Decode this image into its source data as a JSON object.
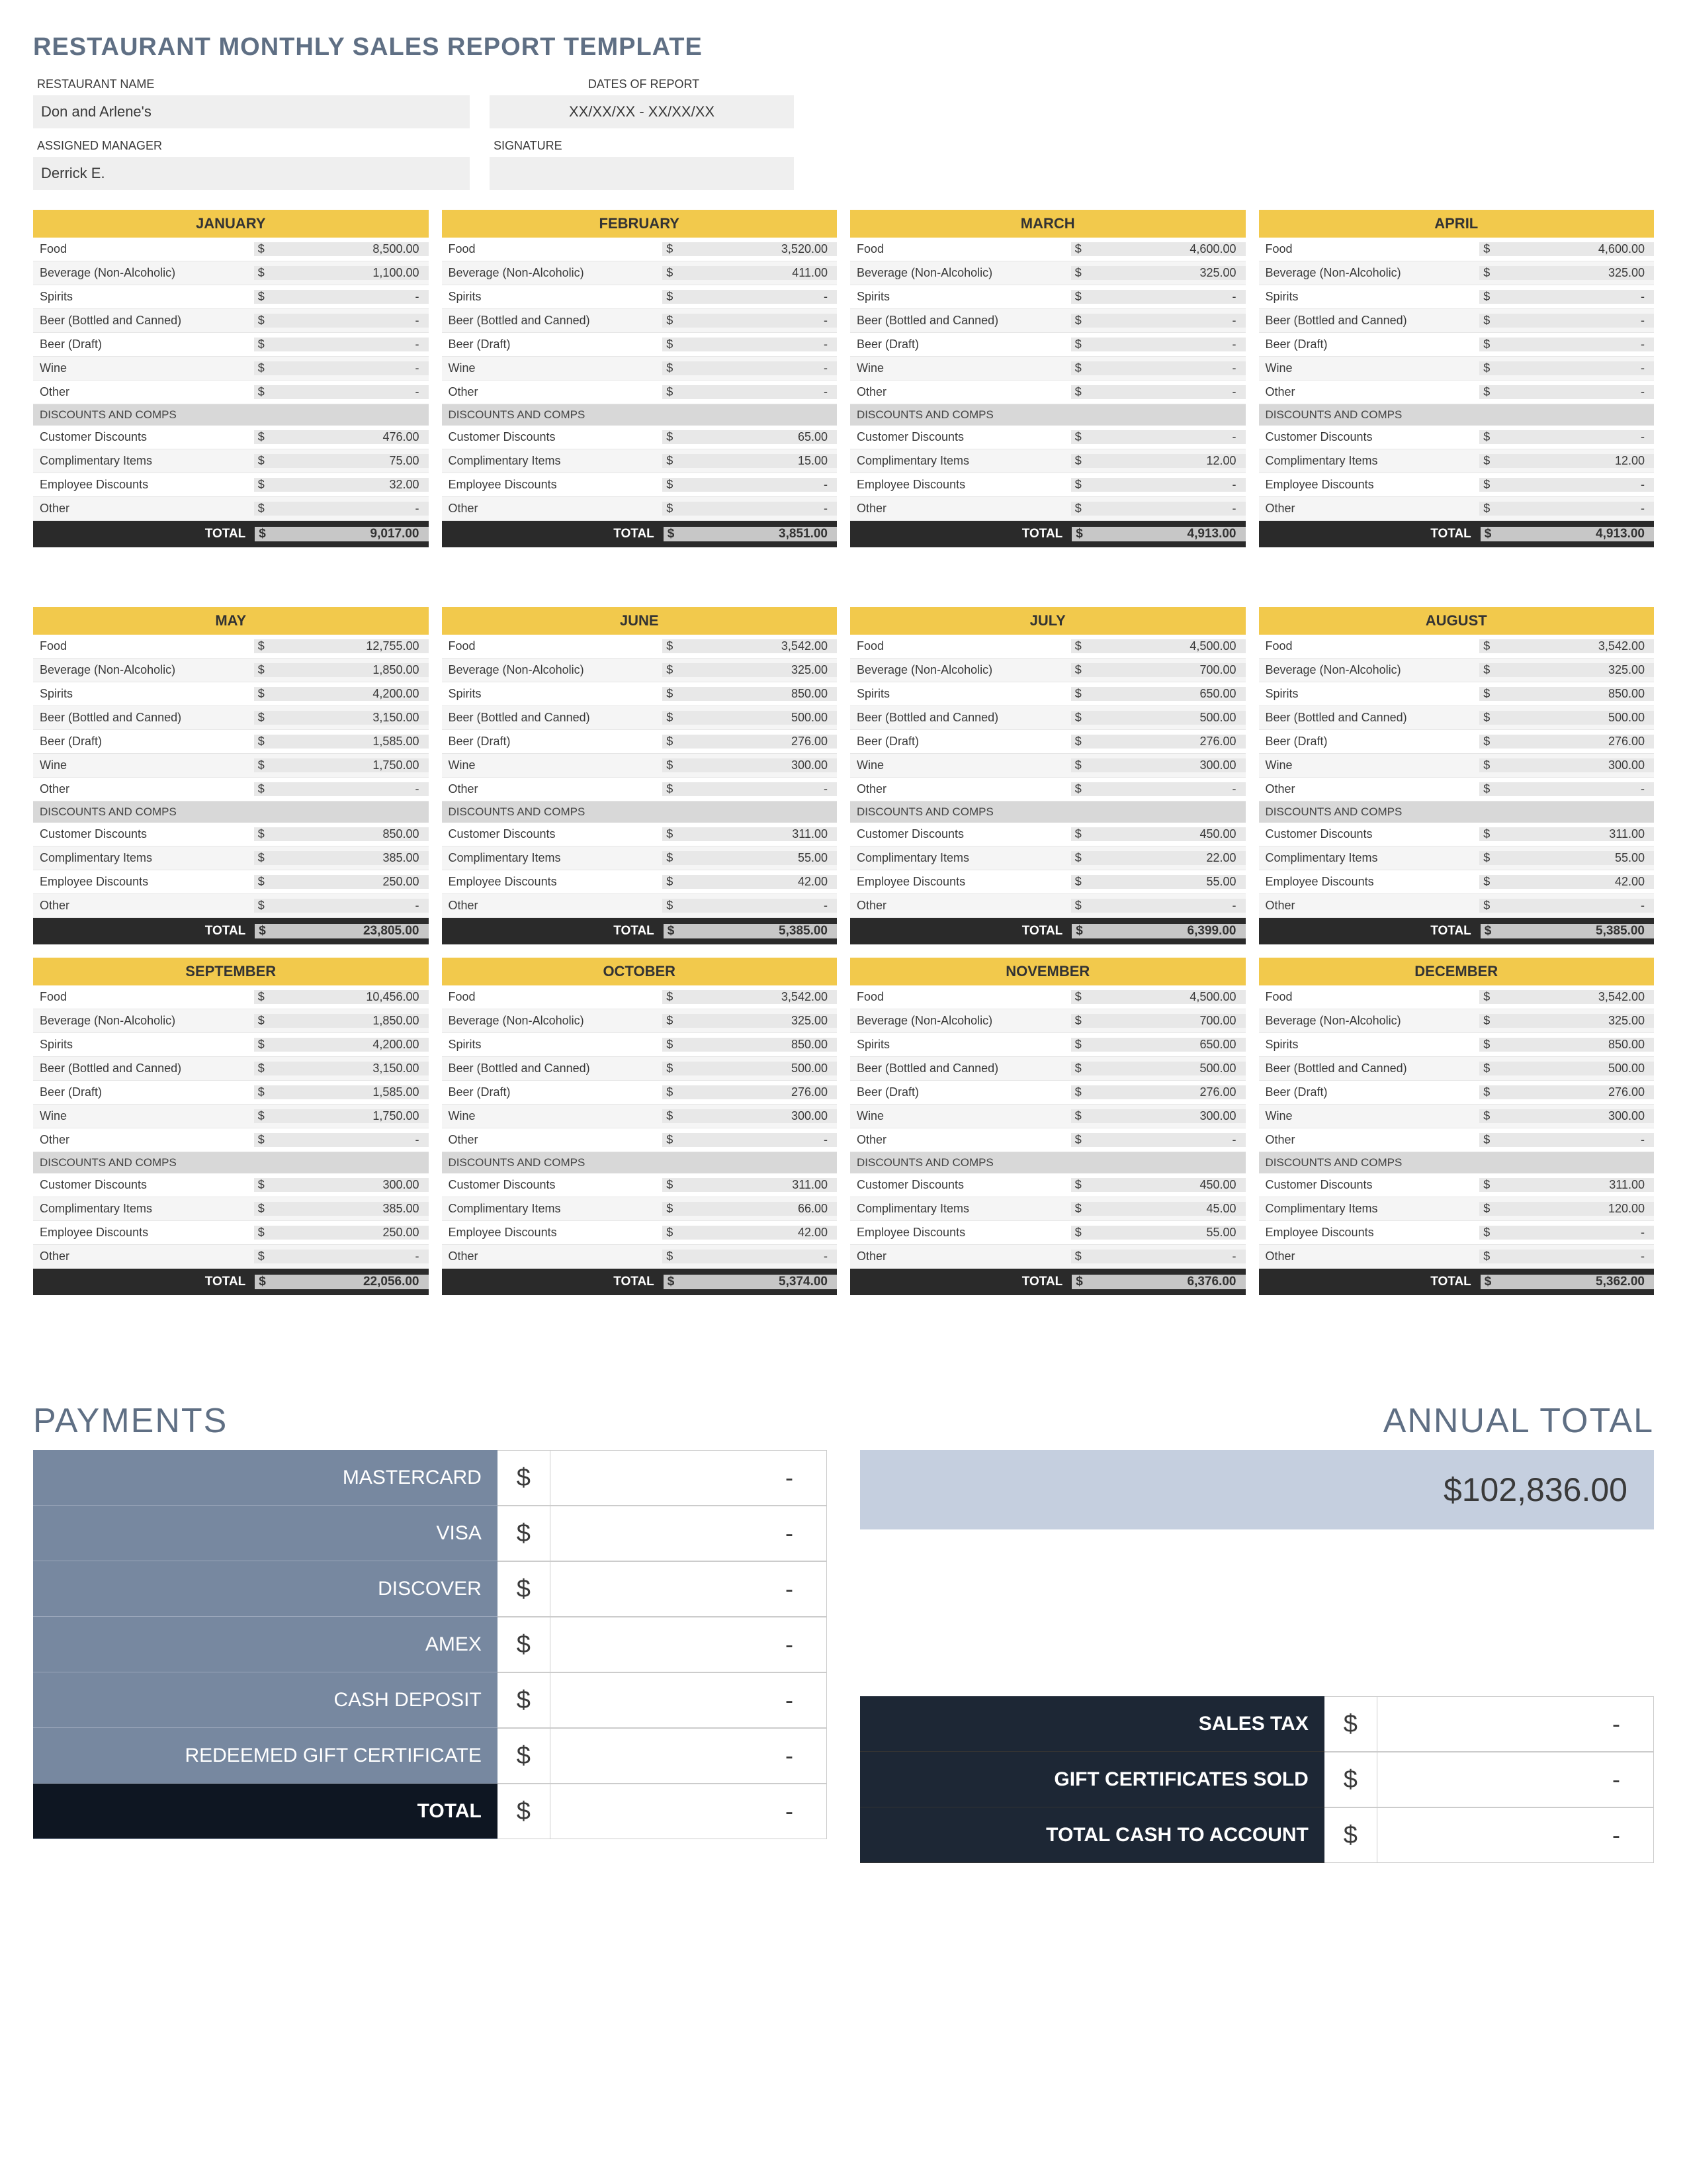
{
  "title": "RESTAURANT MONTHLY SALES REPORT TEMPLATE",
  "header": {
    "restaurant_label": "RESTAURANT NAME",
    "restaurant_value": "Don and Arlene's",
    "dates_label": "DATES OF REPORT",
    "dates_value": "XX/XX/XX - XX/XX/XX",
    "manager_label": "ASSIGNED MANAGER",
    "manager_value": "Derrick E.",
    "signature_label": "SIGNATURE",
    "signature_value": ""
  },
  "currency_symbol": "$",
  "revenue_line_labels": [
    "Food",
    "Beverage (Non-Alcoholic)",
    "Spirits",
    "Beer (Bottled and Canned)",
    "Beer (Draft)",
    "Wine",
    "Other"
  ],
  "discounts_header": "DISCOUNTS AND COMPS",
  "discount_line_labels": [
    "Customer Discounts",
    "Complimentary Items",
    "Employee Discounts",
    "Other"
  ],
  "total_label": "TOTAL",
  "months": [
    {
      "name": "JANUARY",
      "rev": [
        "8,500.00",
        "1,100.00",
        "-",
        "-",
        "-",
        "-",
        "-"
      ],
      "disc": [
        "476.00",
        "75.00",
        "32.00",
        "-"
      ],
      "total": "9,017.00"
    },
    {
      "name": "FEBRUARY",
      "rev": [
        "3,520.00",
        "411.00",
        "-",
        "-",
        "-",
        "-",
        "-"
      ],
      "disc": [
        "65.00",
        "15.00",
        "-",
        "-"
      ],
      "total": "3,851.00"
    },
    {
      "name": "MARCH",
      "rev": [
        "4,600.00",
        "325.00",
        "-",
        "-",
        "-",
        "-",
        "-"
      ],
      "disc": [
        "-",
        "12.00",
        "-",
        "-"
      ],
      "total": "4,913.00"
    },
    {
      "name": "APRIL",
      "rev": [
        "4,600.00",
        "325.00",
        "-",
        "-",
        "-",
        "-",
        "-"
      ],
      "disc": [
        "-",
        "12.00",
        "-",
        "-"
      ],
      "total": "4,913.00"
    },
    {
      "name": "MAY",
      "rev": [
        "12,755.00",
        "1,850.00",
        "4,200.00",
        "3,150.00",
        "1,585.00",
        "1,750.00",
        "-"
      ],
      "disc": [
        "850.00",
        "385.00",
        "250.00",
        "-"
      ],
      "total": "23,805.00"
    },
    {
      "name": "JUNE",
      "rev": [
        "3,542.00",
        "325.00",
        "850.00",
        "500.00",
        "276.00",
        "300.00",
        "-"
      ],
      "disc": [
        "311.00",
        "55.00",
        "42.00",
        "-"
      ],
      "total": "5,385.00"
    },
    {
      "name": "JULY",
      "rev": [
        "4,500.00",
        "700.00",
        "650.00",
        "500.00",
        "276.00",
        "300.00",
        "-"
      ],
      "disc": [
        "450.00",
        "22.00",
        "55.00",
        "-"
      ],
      "total": "6,399.00"
    },
    {
      "name": "AUGUST",
      "rev": [
        "3,542.00",
        "325.00",
        "850.00",
        "500.00",
        "276.00",
        "300.00",
        "-"
      ],
      "disc": [
        "311.00",
        "55.00",
        "42.00",
        "-"
      ],
      "total": "5,385.00"
    },
    {
      "name": "SEPTEMBER",
      "rev": [
        "10,456.00",
        "1,850.00",
        "4,200.00",
        "3,150.00",
        "1,585.00",
        "1,750.00",
        "-"
      ],
      "disc": [
        "300.00",
        "385.00",
        "250.00",
        "-"
      ],
      "total": "22,056.00"
    },
    {
      "name": "OCTOBER",
      "rev": [
        "3,542.00",
        "325.00",
        "850.00",
        "500.00",
        "276.00",
        "300.00",
        "-"
      ],
      "disc": [
        "311.00",
        "66.00",
        "42.00",
        "-"
      ],
      "total": "5,374.00"
    },
    {
      "name": "NOVEMBER",
      "rev": [
        "4,500.00",
        "700.00",
        "650.00",
        "500.00",
        "276.00",
        "300.00",
        "-"
      ],
      "disc": [
        "450.00",
        "45.00",
        "55.00",
        "-"
      ],
      "total": "6,376.00"
    },
    {
      "name": "DECEMBER",
      "rev": [
        "3,542.00",
        "325.00",
        "850.00",
        "500.00",
        "276.00",
        "300.00",
        "-"
      ],
      "disc": [
        "311.00",
        "120.00",
        "-",
        "-"
      ],
      "total": "5,362.00"
    }
  ],
  "payments_title": "PAYMENTS",
  "payments": [
    {
      "label": "MASTERCARD",
      "value": "-",
      "style": "normal"
    },
    {
      "label": "VISA",
      "value": "-",
      "style": "normal"
    },
    {
      "label": "DISCOVER",
      "value": "-",
      "style": "normal"
    },
    {
      "label": "AMEX",
      "value": "-",
      "style": "normal"
    },
    {
      "label": "CASH DEPOSIT",
      "value": "-",
      "style": "normal"
    },
    {
      "label": "REDEEMED GIFT CERTIFICATE",
      "value": "-",
      "style": "normal"
    },
    {
      "label": "TOTAL",
      "value": "-",
      "style": "darker"
    }
  ],
  "annual_title": "ANNUAL TOTAL",
  "annual_total": "$102,836.00",
  "summary": [
    {
      "label": "SALES TAX",
      "value": "-"
    },
    {
      "label": "GIFT CERTIFICATES SOLD",
      "value": "-"
    },
    {
      "label": "TOTAL CASH TO ACCOUNT",
      "value": "-"
    }
  ],
  "style": {
    "month_header_bg": "#f2c94c",
    "total_row_bg": "#2a2a2a",
    "pay_label_bg": "#7788a0",
    "pay_dark_bg": "#1d2735",
    "annual_box_bg": "#c5cfdf",
    "title_color": "#5f6f84"
  }
}
